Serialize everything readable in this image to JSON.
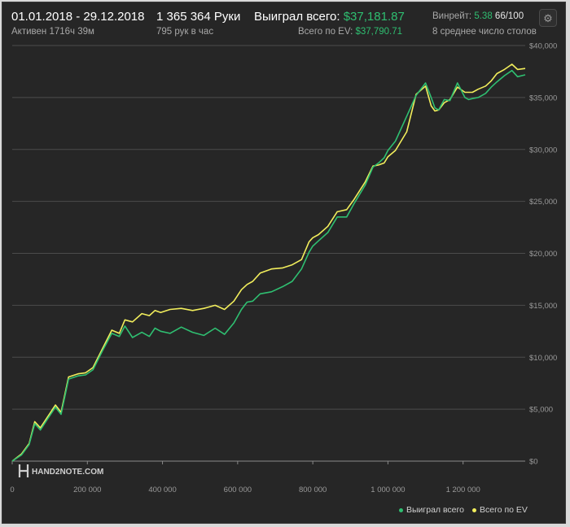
{
  "header": {
    "date_range": "01.01.2018 - 29.12.2018",
    "active_time": "Активен 1716ч 39м",
    "hands": "1 365 364 Руки",
    "hands_per_hour": "795 рук в час",
    "won_label": "Выиграл всего:",
    "won_value": "$37,181.87",
    "ev_label": "Всего по EV:",
    "ev_value": "$37,790.71",
    "winrate_label": "Винрейт:",
    "winrate_value": "5.38",
    "winrate_ratio": "66/100",
    "tables_avg": "8 среднее число столов",
    "gear_icon": "gear-icon"
  },
  "watermark": {
    "text": "HAND2NOTE.COM",
    "logo_icon": "h2n-logo-icon"
  },
  "colors": {
    "won": "#2fbf71",
    "ev": "#f2ee5c",
    "grid": "#4c4c4c",
    "axis_text": "#9a9a9a",
    "background": "#262626"
  },
  "chart_data": {
    "type": "line",
    "title": "",
    "xlabel": "",
    "ylabel": "",
    "xlim": [
      0,
      1365364
    ],
    "ylim": [
      0,
      40000
    ],
    "grid": true,
    "legend_position": "bottom-right",
    "y_ticks": [
      {
        "value": 0,
        "label": "$0"
      },
      {
        "value": 5000,
        "label": "$5,000"
      },
      {
        "value": 10000,
        "label": "$10,000"
      },
      {
        "value": 15000,
        "label": "$15,000"
      },
      {
        "value": 20000,
        "label": "$20,000"
      },
      {
        "value": 25000,
        "label": "$25,000"
      },
      {
        "value": 30000,
        "label": "$30,000"
      },
      {
        "value": 35000,
        "label": "$35,000"
      },
      {
        "value": 40000,
        "label": "$40,000"
      }
    ],
    "x_ticks": [
      {
        "value": 0,
        "label": "0"
      },
      {
        "value": 200000,
        "label": "200 000"
      },
      {
        "value": 400000,
        "label": "400 000"
      },
      {
        "value": 600000,
        "label": "600 000"
      },
      {
        "value": 800000,
        "label": "800 000"
      },
      {
        "value": 1000000,
        "label": "1 000 000"
      },
      {
        "value": 1200000,
        "label": "1 200 000"
      }
    ],
    "series": [
      {
        "name": "Выиграл всего",
        "x": [
          0,
          25000,
          45000,
          60000,
          75000,
          95000,
          115000,
          130000,
          150000,
          175000,
          195000,
          215000,
          240000,
          265000,
          285000,
          300000,
          320000,
          345000,
          365000,
          380000,
          395000,
          420000,
          450000,
          480000,
          510000,
          540000,
          565000,
          590000,
          610000,
          625000,
          640000,
          660000,
          690000,
          720000,
          745000,
          770000,
          790000,
          800000,
          815000,
          840000,
          865000,
          890000,
          910000,
          940000,
          960000,
          975000,
          990000,
          1000000,
          1020000,
          1050000,
          1075000,
          1100000,
          1115000,
          1125000,
          1135000,
          1150000,
          1165000,
          1185000,
          1205000,
          1215000,
          1225000,
          1240000,
          1260000,
          1275000,
          1290000,
          1310000,
          1330000,
          1345000,
          1365364
        ],
        "values": [
          0,
          600,
          1600,
          3600,
          3000,
          4100,
          5200,
          4500,
          7900,
          8200,
          8300,
          8800,
          10600,
          12300,
          12000,
          13000,
          11900,
          12400,
          12000,
          12800,
          12500,
          12300,
          12900,
          12400,
          12100,
          12800,
          12200,
          13300,
          14600,
          15300,
          15400,
          16100,
          16300,
          16800,
          17300,
          18500,
          20100,
          20700,
          21200,
          22000,
          23500,
          23500,
          24800,
          26600,
          28300,
          28700,
          29200,
          29900,
          30800,
          33200,
          35200,
          36400,
          35000,
          34000,
          33800,
          34800,
          34700,
          36400,
          35000,
          34800,
          34900,
          35000,
          35400,
          36000,
          36500,
          37100,
          37600,
          37000,
          37181.87
        ]
      },
      {
        "name": "Всего по EV",
        "x": [
          0,
          25000,
          45000,
          60000,
          75000,
          95000,
          115000,
          130000,
          150000,
          175000,
          195000,
          215000,
          240000,
          265000,
          285000,
          300000,
          320000,
          345000,
          365000,
          380000,
          395000,
          420000,
          450000,
          480000,
          510000,
          540000,
          565000,
          590000,
          610000,
          625000,
          640000,
          660000,
          690000,
          720000,
          745000,
          770000,
          790000,
          800000,
          815000,
          840000,
          865000,
          890000,
          910000,
          940000,
          960000,
          975000,
          990000,
          1000000,
          1020000,
          1050000,
          1075000,
          1100000,
          1115000,
          1125000,
          1135000,
          1150000,
          1165000,
          1185000,
          1205000,
          1215000,
          1225000,
          1240000,
          1260000,
          1275000,
          1290000,
          1310000,
          1330000,
          1345000,
          1365364
        ],
        "values": [
          0,
          700,
          1700,
          3800,
          3200,
          4300,
          5400,
          4700,
          8100,
          8400,
          8500,
          9000,
          10800,
          12600,
          12300,
          13600,
          13400,
          14200,
          14000,
          14500,
          14300,
          14600,
          14700,
          14500,
          14700,
          15000,
          14600,
          15400,
          16500,
          17000,
          17300,
          18100,
          18500,
          18600,
          18900,
          19400,
          21100,
          21500,
          21800,
          22600,
          24000,
          24200,
          25200,
          26900,
          28400,
          28500,
          28700,
          29300,
          29900,
          31700,
          35300,
          36100,
          34200,
          33700,
          33800,
          34500,
          34800,
          36000,
          35500,
          35500,
          35500,
          35800,
          36100,
          36600,
          37300,
          37700,
          38200,
          37700,
          37790.71
        ]
      }
    ]
  }
}
